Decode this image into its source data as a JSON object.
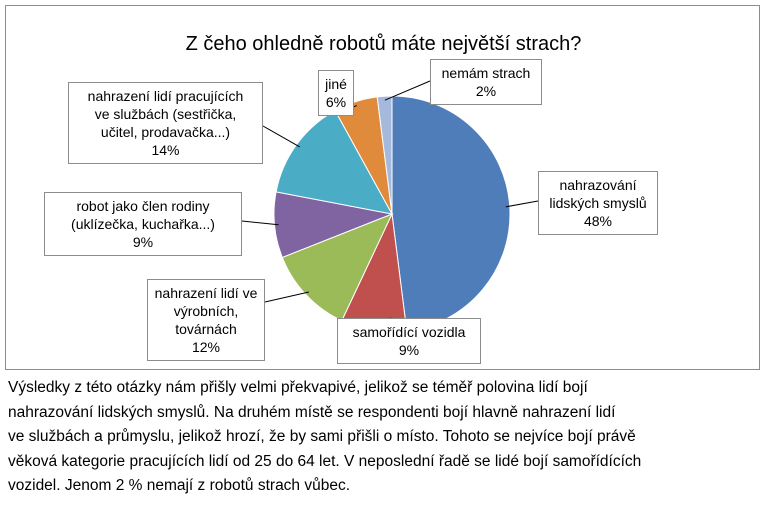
{
  "chart_data": {
    "type": "pie",
    "title": "Z čeho ohledně robotů máte největší strach?",
    "slices": [
      {
        "label": "nahrazování lidských smyslů",
        "label_lines": [
          "nahrazování",
          "lidských smyslů"
        ],
        "value": 48,
        "value_label": "48%",
        "color": "#4f7dba"
      },
      {
        "label": "samořídící vozidla",
        "label_lines": [
          "samořídící vozidla"
        ],
        "value": 9,
        "value_label": "9%",
        "color": "#c0504d"
      },
      {
        "label": "nahrazení lidí ve výrobních, továrnách",
        "label_lines": [
          "nahrazení lidí ve",
          "výrobních,",
          "továrnách"
        ],
        "value": 12,
        "value_label": "12%",
        "color": "#9bbb59"
      },
      {
        "label": "robot jako člen rodiny (uklízečka, kuchařka...)",
        "label_lines": [
          "robot jako člen rodiny",
          "(uklízečka, kuchařka...)"
        ],
        "value": 9,
        "value_label": "9%",
        "color": "#8064a2"
      },
      {
        "label": "nahrazení lidí pracujících ve službách (sestřička, učitel, prodavačka...)",
        "label_lines": [
          "nahrazení lidí pracujících",
          "ve službách (sestřička,",
          "učitel, prodavačka...)"
        ],
        "value": 14,
        "value_label": "14%",
        "color": "#4bacc6"
      },
      {
        "label": "jiné",
        "label_lines": [
          "jiné"
        ],
        "value": 6,
        "value_label": "6%",
        "color": "#e08a3c"
      },
      {
        "label": "nemám strach",
        "label_lines": [
          "nemám strach"
        ],
        "value": 2,
        "value_label": "2%",
        "color": "#a5b9dc"
      }
    ]
  },
  "caption": {
    "lines": [
      "Výsledky z této otázky nám přišly velmi překvapivé, jelikož se téměř polovina lidí bojí",
      "nahrazování lidských smyslů. Na druhém místě se respondenti bojí hlavně nahrazení lidí",
      "ve službách a průmyslu, jelikož hrozí, že by sami přišli o místo. Tohoto se nejvíce bojí právě",
      "věková kategorie pracujících lidí od 25 do 64 let. V neposlední řadě se lidé bojí samořídících",
      "vozidel. Jenom 2 % nemají z robotů strach vůbec."
    ]
  }
}
